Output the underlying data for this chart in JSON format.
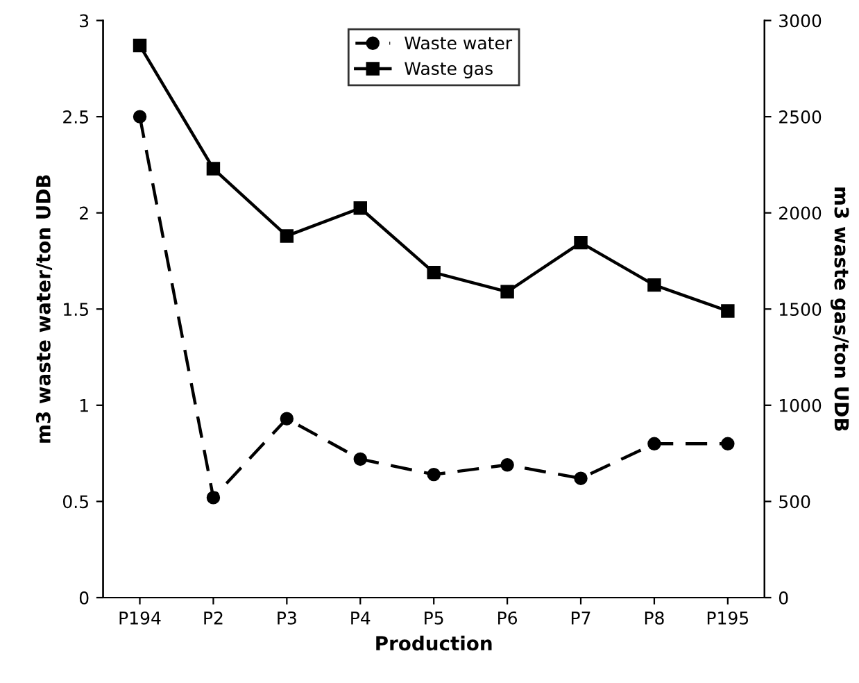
{
  "chart_data": {
    "type": "line",
    "xlabel": "Production",
    "ylabel": "m3 waste water/ton UDB",
    "y2label": "m3 waste gas/ton UDB",
    "categories": [
      "P194",
      "P2",
      "P3",
      "P4",
      "P5",
      "P6",
      "P7",
      "P8",
      "P195"
    ],
    "series": [
      {
        "name": "Waste water",
        "color": "#000000",
        "marker": "circle",
        "line_style": "dashed",
        "values": [
          2.5,
          0.52,
          0.93,
          0.72,
          0.64,
          0.69,
          0.62,
          0.8,
          0.8
        ]
      },
      {
        "name": "Waste gas",
        "color": "#000000",
        "marker": "square",
        "line_style": "solid",
        "axis": "y2",
        "values": [
          2870,
          2230,
          1880,
          2025,
          1690,
          1590,
          1845,
          1625,
          1490
        ]
      }
    ],
    "ylim": [
      0,
      3
    ],
    "yticks": [
      0,
      0.5,
      1,
      1.5,
      2,
      2.5,
      3
    ],
    "y2lim": [
      0,
      3000
    ],
    "y2ticks": [
      0,
      500,
      1000,
      1500,
      2000,
      2500,
      3000
    ],
    "grid": false,
    "legend": "top"
  }
}
